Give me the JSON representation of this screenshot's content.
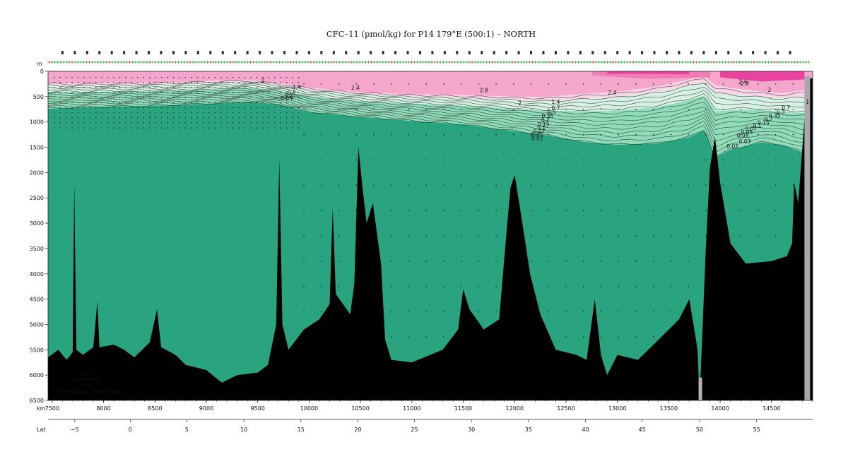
{
  "title": "CFC–11 (pmol/kg) for P14 179°E (500:1) – NORTH",
  "watermark": {
    "line1": "WOCE",
    "line2": "HYDROGRAPHIC",
    "line3": "ATLAS",
    "line4": "Computer Generated"
  },
  "colors": {
    "water": "#29a47e",
    "seafloor": "#000000",
    "band_low": "#8fdcb9",
    "band_mid": "#d6f1e3",
    "band_pink_light": "#f8d4e6",
    "band_pink": "#f4a6cb",
    "band_pink_mid": "#ef7db6",
    "band_pink_strong": "#e8449d",
    "contour": "#1f1f1f"
  },
  "chart_data": {
    "type": "section",
    "variable": "CFC-11",
    "units": "pmol/kg",
    "x_axis_label": "km",
    "y_axis_label": "m",
    "lat_axis_label": "Lat",
    "xlim": [
      7460,
      14900
    ],
    "ylim": [
      6500,
      0
    ],
    "x_ticks": [
      7500,
      8000,
      8500,
      9000,
      9500,
      10000,
      10500,
      11000,
      11500,
      12000,
      12500,
      13000,
      13500,
      14000,
      14500
    ],
    "y_ticks": [
      0,
      500,
      1000,
      1500,
      2000,
      2500,
      3000,
      3500,
      4000,
      4500,
      5000,
      5500,
      6000,
      6500
    ],
    "lat_ticks": [
      {
        "lat": "−5",
        "km": 7720
      },
      {
        "lat": "0",
        "km": 8260
      },
      {
        "lat": "5",
        "km": 8810
      },
      {
        "lat": "10",
        "km": 9365
      },
      {
        "lat": "15",
        "km": 9920
      },
      {
        "lat": "20",
        "km": 10475
      },
      {
        "lat": "25",
        "km": 11025
      },
      {
        "lat": "30",
        "km": 11580
      },
      {
        "lat": "35",
        "km": 12135
      },
      {
        "lat": "40",
        "km": 12690
      },
      {
        "lat": "45",
        "km": 13240
      },
      {
        "lat": "50",
        "km": 13800
      },
      {
        "lat": "55",
        "km": 14355
      }
    ],
    "contour_levels": [
      0.02,
      0.03,
      0.04,
      0.05,
      0.07,
      0.1,
      0.15,
      0.2,
      0.35,
      0.5,
      0.7,
      1,
      1.4,
      2,
      2.4,
      2.8
    ],
    "surface_field": [
      {
        "km": 7460,
        "d_pink": 230,
        "d_zero": 740
      },
      {
        "km": 7700,
        "d_pink": 250,
        "d_zero": 720
      },
      {
        "km": 8000,
        "d_pink": 240,
        "d_zero": 700
      },
      {
        "km": 8500,
        "d_pink": 230,
        "d_zero": 680
      },
      {
        "km": 9000,
        "d_pink": 200,
        "d_zero": 640
      },
      {
        "km": 9400,
        "d_pink": 180,
        "d_zero": 600
      },
      {
        "km": 9700,
        "d_pink": 240,
        "d_zero": 650
      },
      {
        "km": 10000,
        "d_pink": 330,
        "d_zero": 800
      },
      {
        "km": 10500,
        "d_pink": 420,
        "d_zero": 900
      },
      {
        "km": 11000,
        "d_pink": 460,
        "d_zero": 980
      },
      {
        "km": 11500,
        "d_pink": 480,
        "d_zero": 1050
      },
      {
        "km": 12000,
        "d_pink": 510,
        "d_zero": 1180
      },
      {
        "km": 12300,
        "d_pink": 520,
        "d_zero": 1260
      },
      {
        "km": 12700,
        "d_pink": 460,
        "d_zero": 1400
      },
      {
        "km": 13000,
        "d_pink": 420,
        "d_zero": 1450
      },
      {
        "km": 13400,
        "d_pink": 320,
        "d_zero": 1420
      },
      {
        "km": 13700,
        "d_pink": 180,
        "d_zero": 1300
      },
      {
        "km": 13850,
        "d_pink": 120,
        "d_zero": 1150
      },
      {
        "km": 13950,
        "d_pink": 300,
        "d_zero": 1700
      },
      {
        "km": 14100,
        "d_pink": 350,
        "d_zero": 1550
      },
      {
        "km": 14400,
        "d_pink": 420,
        "d_zero": 1400
      },
      {
        "km": 14600,
        "d_pink": 450,
        "d_zero": 1450
      },
      {
        "km": 14800,
        "d_pink": 400,
        "d_zero": 1600
      }
    ],
    "bottom_profile": [
      {
        "km": 7460,
        "d": 5650
      },
      {
        "km": 7560,
        "d": 5500
      },
      {
        "km": 7640,
        "d": 5700
      },
      {
        "km": 7700,
        "d": 5550
      },
      {
        "km": 7715,
        "d": 2200
      },
      {
        "km": 7735,
        "d": 5500
      },
      {
        "km": 7800,
        "d": 5600
      },
      {
        "km": 7900,
        "d": 5450
      },
      {
        "km": 7940,
        "d": 4550
      },
      {
        "km": 7960,
        "d": 5450
      },
      {
        "km": 8100,
        "d": 5400
      },
      {
        "km": 8200,
        "d": 5500
      },
      {
        "km": 8300,
        "d": 5650
      },
      {
        "km": 8450,
        "d": 5350
      },
      {
        "km": 8520,
        "d": 4700
      },
      {
        "km": 8560,
        "d": 5450
      },
      {
        "km": 8700,
        "d": 5600
      },
      {
        "km": 8800,
        "d": 5800
      },
      {
        "km": 9000,
        "d": 5900
      },
      {
        "km": 9150,
        "d": 6150
      },
      {
        "km": 9300,
        "d": 6000
      },
      {
        "km": 9500,
        "d": 5950
      },
      {
        "km": 9600,
        "d": 5800
      },
      {
        "km": 9680,
        "d": 5000
      },
      {
        "km": 9710,
        "d": 1750
      },
      {
        "km": 9740,
        "d": 5000
      },
      {
        "km": 9800,
        "d": 5500
      },
      {
        "km": 9950,
        "d": 5100
      },
      {
        "km": 10100,
        "d": 4900
      },
      {
        "km": 10200,
        "d": 4600
      },
      {
        "km": 10230,
        "d": 2700
      },
      {
        "km": 10260,
        "d": 4400
      },
      {
        "km": 10400,
        "d": 4800
      },
      {
        "km": 10440,
        "d": 4200
      },
      {
        "km": 10480,
        "d": 1500
      },
      {
        "km": 10520,
        "d": 2300
      },
      {
        "km": 10560,
        "d": 3000
      },
      {
        "km": 10620,
        "d": 2600
      },
      {
        "km": 10700,
        "d": 3800
      },
      {
        "km": 10740,
        "d": 5300
      },
      {
        "km": 10800,
        "d": 5700
      },
      {
        "km": 11000,
        "d": 5750
      },
      {
        "km": 11300,
        "d": 5500
      },
      {
        "km": 11450,
        "d": 5100
      },
      {
        "km": 11500,
        "d": 4300
      },
      {
        "km": 11560,
        "d": 4700
      },
      {
        "km": 11700,
        "d": 5100
      },
      {
        "km": 11850,
        "d": 4900
      },
      {
        "km": 11920,
        "d": 3200
      },
      {
        "km": 11960,
        "d": 2300
      },
      {
        "km": 12000,
        "d": 2050
      },
      {
        "km": 12060,
        "d": 2800
      },
      {
        "km": 12150,
        "d": 4000
      },
      {
        "km": 12250,
        "d": 4800
      },
      {
        "km": 12400,
        "d": 5500
      },
      {
        "km": 12600,
        "d": 5600
      },
      {
        "km": 12700,
        "d": 5700
      },
      {
        "km": 12780,
        "d": 4500
      },
      {
        "km": 12840,
        "d": 5600
      },
      {
        "km": 12900,
        "d": 6000
      },
      {
        "km": 13000,
        "d": 5600
      },
      {
        "km": 13200,
        "d": 5700
      },
      {
        "km": 13400,
        "d": 5300
      },
      {
        "km": 13600,
        "d": 4900
      },
      {
        "km": 13700,
        "d": 4500
      },
      {
        "km": 13780,
        "d": 5500
      },
      {
        "km": 13800,
        "d": 6500
      },
      {
        "km": 13830,
        "d": 5000
      },
      {
        "km": 13860,
        "d": 3500
      },
      {
        "km": 13900,
        "d": 1900
      },
      {
        "km": 13950,
        "d": 1300
      },
      {
        "km": 14000,
        "d": 2200
      },
      {
        "km": 14100,
        "d": 3400
      },
      {
        "km": 14250,
        "d": 3800
      },
      {
        "km": 14500,
        "d": 3750
      },
      {
        "km": 14650,
        "d": 3650
      },
      {
        "km": 14700,
        "d": 3400
      },
      {
        "km": 14720,
        "d": 2200
      },
      {
        "km": 14760,
        "d": 2600
      },
      {
        "km": 14800,
        "d": 1500
      },
      {
        "km": 14850,
        "d": 140
      },
      {
        "km": 14900,
        "d": 140
      }
    ],
    "contour_labels": [
      {
        "text": "2",
        "km": 9550,
        "d": 180
      },
      {
        "text": "2.4",
        "km": 10450,
        "d": 320
      },
      {
        "text": "2.8",
        "km": 11700,
        "d": 370
      },
      {
        "text": "2.4",
        "km": 12950,
        "d": 420
      },
      {
        "text": "2",
        "km": 12050,
        "d": 630
      },
      {
        "text": "1.4",
        "km": 12400,
        "d": 600
      },
      {
        "text": "0.7",
        "km": 12400,
        "d": 720
      },
      {
        "text": "0.5",
        "km": 12360,
        "d": 800
      },
      {
        "text": "0.35",
        "km": 12320,
        "d": 880
      },
      {
        "text": "0.2",
        "km": 12300,
        "d": 960
      },
      {
        "text": "0.15",
        "km": 12280,
        "d": 1040
      },
      {
        "text": "0.1",
        "km": 12260,
        "d": 1110
      },
      {
        "text": "0.07",
        "km": 12240,
        "d": 1180
      },
      {
        "text": "0.05",
        "km": 12220,
        "d": 1240
      },
      {
        "text": "0.02",
        "km": 12220,
        "d": 1320
      },
      {
        "text": "2.4",
        "km": 14220,
        "d": 200
      },
      {
        "text": "2.8",
        "km": 14240,
        "d": 240
      },
      {
        "text": "2",
        "km": 14480,
        "d": 360
      },
      {
        "text": "1",
        "km": 14850,
        "d": 600
      },
      {
        "text": "0.7",
        "km": 14640,
        "d": 710
      },
      {
        "text": "0.5",
        "km": 14590,
        "d": 790
      },
      {
        "text": "0.35",
        "km": 14530,
        "d": 870
      },
      {
        "text": "0.2",
        "km": 14470,
        "d": 940
      },
      {
        "text": "0.15",
        "km": 14420,
        "d": 1010
      },
      {
        "text": "0.1",
        "km": 14360,
        "d": 1070
      },
      {
        "text": "0.07",
        "km": 14300,
        "d": 1130
      },
      {
        "text": "0.05",
        "km": 14260,
        "d": 1200
      },
      {
        "text": "0.04",
        "km": 14220,
        "d": 1260
      },
      {
        "text": "0.03",
        "km": 14240,
        "d": 1380
      },
      {
        "text": "0.02",
        "km": 14120,
        "d": 1480
      },
      {
        "text": "1.4",
        "km": 9880,
        "d": 310
      },
      {
        "text": "0.5",
        "km": 9830,
        "d": 420
      },
      {
        "text": "0.2",
        "km": 9800,
        "d": 480
      },
      {
        "text": "0.05",
        "km": 9780,
        "d": 530
      }
    ]
  }
}
